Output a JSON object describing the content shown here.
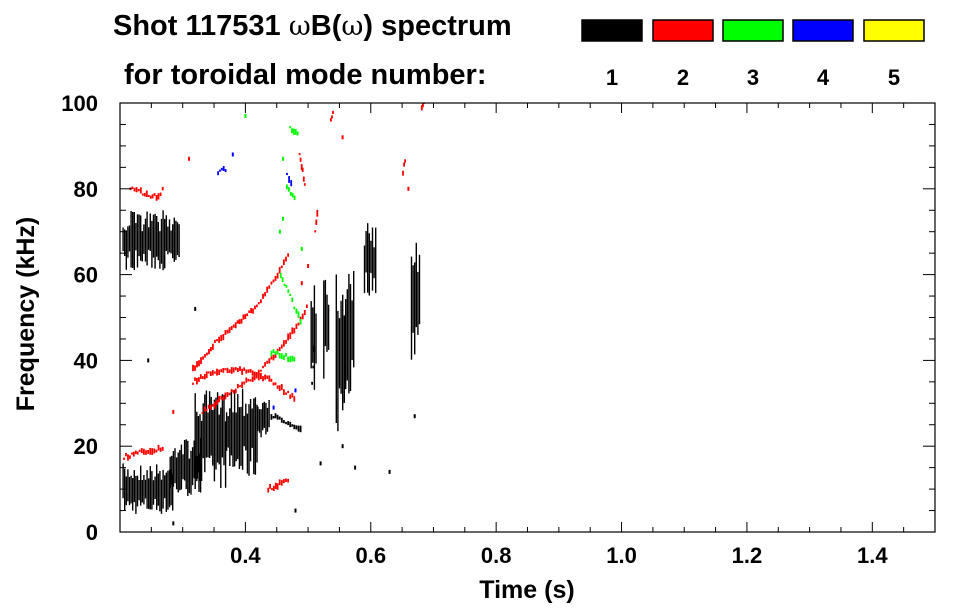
{
  "chart_data": {
    "type": "scatter",
    "title": {
      "prefix": "Shot 117531 ",
      "omega1": "ω",
      "mid": "B(",
      "omega2": "ω",
      "suffix": ") spectrum"
    },
    "subtitle": "for toroidal mode number:",
    "xlabel": "Time (s)",
    "ylabel": "Frequency (kHz)",
    "xlim": [
      0.2,
      1.5
    ],
    "ylim": [
      0,
      100
    ],
    "x_ticks": [
      {
        "value": 0.4,
        "label": "0.4"
      },
      {
        "value": 0.6,
        "label": "0.6"
      },
      {
        "value": 0.8,
        "label": "0.8"
      },
      {
        "value": 1.0,
        "label": "1.0"
      },
      {
        "value": 1.2,
        "label": "1.2"
      },
      {
        "value": 1.4,
        "label": "1.4"
      }
    ],
    "y_ticks": [
      {
        "value": 0,
        "label": "0"
      },
      {
        "value": 20,
        "label": "20"
      },
      {
        "value": 40,
        "label": "40"
      },
      {
        "value": 60,
        "label": "60"
      },
      {
        "value": 80,
        "label": "80"
      },
      {
        "value": 100,
        "label": "100"
      }
    ],
    "legend": [
      {
        "mode": "1",
        "color": "#000000"
      },
      {
        "mode": "2",
        "color": "#ff0000"
      },
      {
        "mode": "3",
        "color": "#00ff00"
      },
      {
        "mode": "4",
        "color": "#0000ff"
      },
      {
        "mode": "5",
        "color": "#ffff00"
      }
    ],
    "series": [
      {
        "name": "n=1",
        "color": "#000000",
        "blobs": [
          {
            "t0": 0.205,
            "t1": 0.285,
            "f0": 4,
            "f1": 16
          },
          {
            "t0": 0.28,
            "t1": 0.33,
            "f0": 8,
            "f1": 22
          },
          {
            "t0": 0.32,
            "t1": 0.37,
            "f0": 10,
            "f1": 33
          },
          {
            "t0": 0.37,
            "t1": 0.42,
            "f0": 12,
            "f1": 35
          },
          {
            "t0": 0.42,
            "t1": 0.44,
            "f0": 22,
            "f1": 31
          },
          {
            "t0": 0.205,
            "t1": 0.295,
            "f0": 61,
            "f1": 75
          },
          {
            "t0": 0.505,
            "t1": 0.515,
            "f0": 27,
            "f1": 63
          },
          {
            "t0": 0.525,
            "t1": 0.535,
            "f0": 35,
            "f1": 62
          },
          {
            "t0": 0.545,
            "t1": 0.56,
            "f0": 22,
            "f1": 63
          },
          {
            "t0": 0.56,
            "t1": 0.575,
            "f0": 30,
            "f1": 65
          },
          {
            "t0": 0.59,
            "t1": 0.61,
            "f0": 55,
            "f1": 72
          },
          {
            "t0": 0.665,
            "t1": 0.68,
            "f0": 40,
            "f1": 71
          }
        ],
        "tracks": [
          {
            "t": [
              0.44,
              0.46,
              0.49
            ],
            "f": [
              27,
              26,
              24
            ]
          },
          {
            "t": [
              0.505,
              0.51
            ],
            "f": [
              35,
              46
            ]
          }
        ],
        "dots": [
          {
            "t": 0.285,
            "f": 2
          },
          {
            "t": 0.32,
            "f": 52
          },
          {
            "t": 0.575,
            "f": 15
          },
          {
            "t": 0.63,
            "f": 14
          },
          {
            "t": 0.67,
            "f": 27
          },
          {
            "t": 0.48,
            "f": 5
          },
          {
            "t": 0.245,
            "f": 40
          },
          {
            "t": 0.52,
            "f": 16
          },
          {
            "t": 0.555,
            "f": 20
          }
        ]
      },
      {
        "name": "n=2",
        "color": "#ff0000",
        "tracks": [
          {
            "t": [
              0.205,
              0.23,
              0.25,
              0.27
            ],
            "f": [
              17.5,
              18.5,
              19,
              19.5
            ]
          },
          {
            "t": [
              0.215,
              0.235,
              0.26,
              0.27
            ],
            "f": [
              80,
              79,
              78,
              81
            ]
          },
          {
            "t": [
              0.315,
              0.35,
              0.38,
              0.42,
              0.45,
              0.47
            ],
            "f": [
              38,
              44,
              48,
              53,
              60,
              66
            ]
          },
          {
            "t": [
              0.315,
              0.34,
              0.37,
              0.4,
              0.43,
              0.46,
              0.48
            ],
            "f": [
              35,
              37,
              38,
              37.5,
              36,
              33,
              31
            ]
          },
          {
            "t": [
              0.33,
              0.36,
              0.39,
              0.42,
              0.45,
              0.48,
              0.5
            ],
            "f": [
              28,
              31,
              34,
              37,
              42,
              48,
              53
            ]
          },
          {
            "t": [
              0.435,
              0.45,
              0.47
            ],
            "f": [
              10,
              11,
              12
            ]
          },
          {
            "t": [
              0.485,
              0.49,
              0.495
            ],
            "f": [
              88,
              84,
              79
            ]
          },
          {
            "t": [
              0.51,
              0.515
            ],
            "f": [
              70,
              76
            ]
          },
          {
            "t": [
              0.65,
              0.655
            ],
            "f": [
              84,
              88
            ]
          },
          {
            "t": [
              0.535,
              0.54
            ],
            "f": [
              96,
              98
            ]
          },
          {
            "t": [
              0.68,
              0.685
            ],
            "f": [
              99,
              100
            ]
          }
        ],
        "dots": [
          {
            "t": 0.31,
            "f": 87
          },
          {
            "t": 0.285,
            "f": 28
          },
          {
            "t": 0.5,
            "f": 62
          },
          {
            "t": 0.49,
            "f": 58
          },
          {
            "t": 0.555,
            "f": 92
          },
          {
            "t": 0.66,
            "f": 80
          }
        ]
      },
      {
        "name": "n=3",
        "color": "#00ff00",
        "tracks": [
          {
            "t": [
              0.455,
              0.47,
              0.49
            ],
            "f": [
              60,
              55,
              48
            ]
          },
          {
            "t": [
              0.44,
              0.46,
              0.48
            ],
            "f": [
              42,
              41,
              40
            ]
          },
          {
            "t": [
              0.465,
              0.48
            ],
            "f": [
              80,
              77
            ]
          },
          {
            "t": [
              0.47,
              0.485
            ],
            "f": [
              94,
              93
            ]
          }
        ],
        "dots": [
          {
            "t": 0.46,
            "f": 87
          },
          {
            "t": 0.46,
            "f": 73
          },
          {
            "t": 0.4,
            "f": 97
          },
          {
            "t": 0.455,
            "f": 70
          },
          {
            "t": 0.49,
            "f": 66
          }
        ]
      },
      {
        "name": "n=4",
        "color": "#0000ff",
        "tracks": [
          {
            "t": [
              0.355,
              0.37
            ],
            "f": [
              84,
              84.5
            ]
          },
          {
            "t": [
              0.465,
              0.475
            ],
            "f": [
              83,
              81
            ]
          }
        ],
        "dots": [
          {
            "t": 0.48,
            "f": 33
          },
          {
            "t": 0.445,
            "f": 29
          },
          {
            "t": 0.38,
            "f": 88
          }
        ]
      }
    ]
  }
}
